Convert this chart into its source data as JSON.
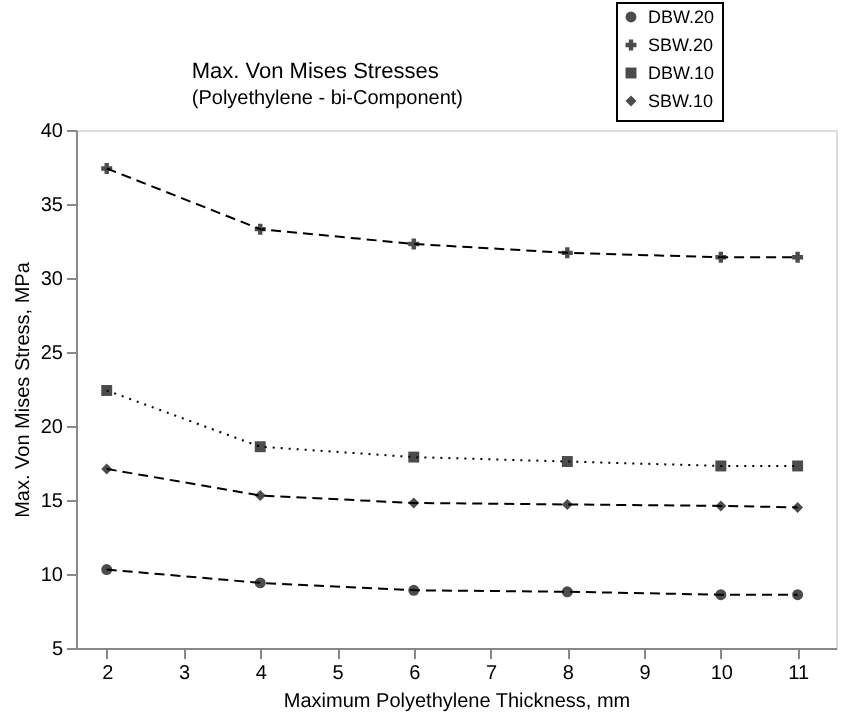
{
  "chart_data": {
    "type": "line",
    "title": "Max. Von Mises Stresses",
    "subtitle": "(Polyethylene - bi-Component)",
    "xlabel": "Maximum Polyethylene Thickness, mm",
    "ylabel": "Max. Von Mises Stress, MPa",
    "x": [
      2,
      4,
      6,
      8,
      10,
      11
    ],
    "series": [
      {
        "name": "DBW.20",
        "color": "#000000",
        "marker": "circle",
        "line_style": "dashed",
        "values": [
          10.3,
          9.4,
          8.9,
          8.8,
          8.6,
          8.6
        ]
      },
      {
        "name": "SBW.20",
        "color": "#000000",
        "marker": "cross",
        "line_style": "dashed",
        "values": [
          37.4,
          33.3,
          32.3,
          31.7,
          31.4,
          31.4
        ]
      },
      {
        "name": "DBW.10",
        "color": "#000000",
        "marker": "square",
        "line_style": "dotted",
        "values": [
          22.4,
          18.6,
          17.9,
          17.6,
          17.3,
          17.3
        ]
      },
      {
        "name": "SBW.10",
        "color": "#000000",
        "marker": "diamond",
        "line_style": "dashed",
        "values": [
          17.1,
          15.3,
          14.8,
          14.7,
          14.6,
          14.5
        ]
      }
    ],
    "xlim": [
      1.6,
      11.5
    ],
    "xticks": [
      2,
      3,
      4,
      5,
      6,
      7,
      8,
      9,
      10,
      11
    ],
    "ylim": [
      5,
      40
    ],
    "yticks": [
      5,
      10,
      15,
      20,
      25,
      30,
      35,
      40
    ],
    "grid": false,
    "legend": "top right"
  }
}
